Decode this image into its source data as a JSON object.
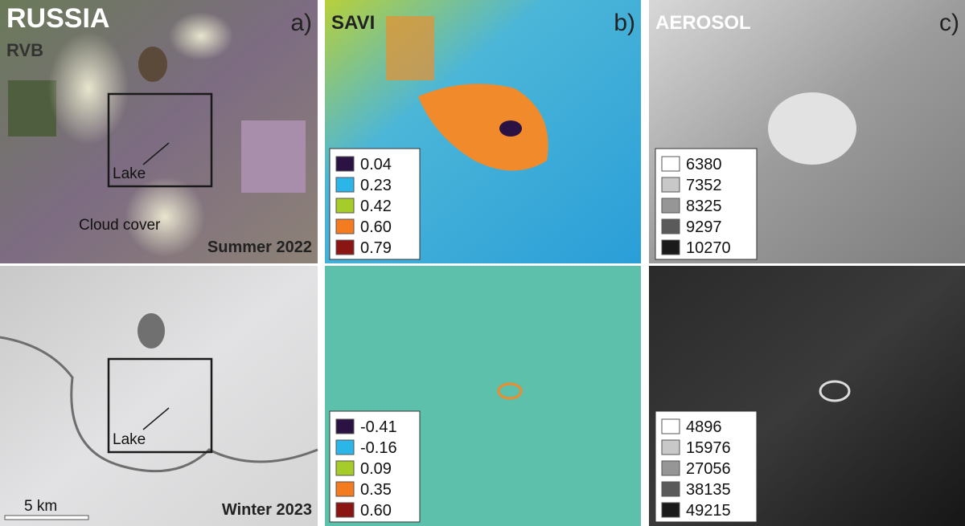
{
  "title": "RUSSIA",
  "panels": [
    {
      "letter": "a)",
      "label": "RVB",
      "top_caption": "Summer 2022",
      "bottom_caption": "Winter 2023",
      "annotations": [
        "Lake",
        "Cloud cover",
        "Lake"
      ],
      "scale_bar": "5 km"
    },
    {
      "letter": "b)",
      "label": "SAVI",
      "legends": [
        [
          {
            "label": "0.04",
            "color": "#2a1242"
          },
          {
            "label": "0.23",
            "color": "#2bb5e8"
          },
          {
            "label": "0.42",
            "color": "#a6cc2a"
          },
          {
            "label": "0.60",
            "color": "#f47c20"
          },
          {
            "label": "0.79",
            "color": "#8a1512"
          }
        ],
        [
          {
            "label": "-0.41",
            "color": "#2a1242"
          },
          {
            "label": "-0.16",
            "color": "#2bb5e8"
          },
          {
            "label": "0.09",
            "color": "#a6cc2a"
          },
          {
            "label": "0.35",
            "color": "#f47c20"
          },
          {
            "label": "0.60",
            "color": "#8a1512"
          }
        ]
      ]
    },
    {
      "letter": "c)",
      "label": "AEROSOL",
      "legends": [
        [
          {
            "label": "6380",
            "color": "#ffffff"
          },
          {
            "label": "7352",
            "color": "#c8c8c8"
          },
          {
            "label": "8325",
            "color": "#969696"
          },
          {
            "label": "9297",
            "color": "#5a5a5a"
          },
          {
            "label": "10270",
            "color": "#1a1a1a"
          }
        ],
        [
          {
            "label": "4896",
            "color": "#ffffff"
          },
          {
            "label": "15976",
            "color": "#c8c8c8"
          },
          {
            "label": "27056",
            "color": "#969696"
          },
          {
            "label": "38135",
            "color": "#5a5a5a"
          },
          {
            "label": "49215",
            "color": "#1a1a1a"
          }
        ]
      ]
    }
  ]
}
